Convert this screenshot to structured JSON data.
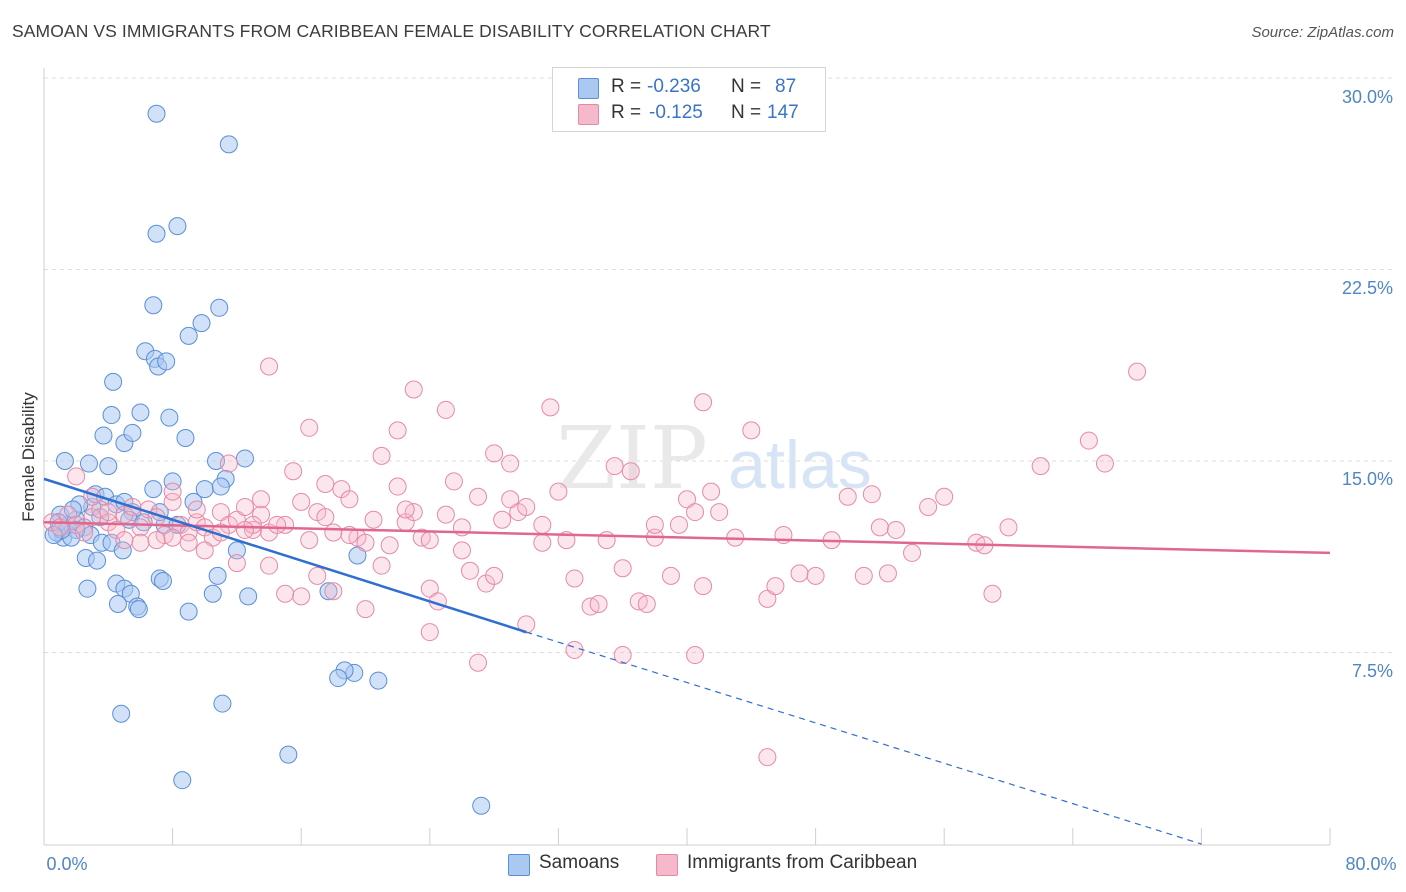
{
  "header": {
    "title": "SAMOAN VS IMMIGRANTS FROM CARIBBEAN FEMALE DISABILITY CORRELATION CHART",
    "source": "Source: ZipAtlas.com"
  },
  "legend_top": [
    {
      "r_label": "R =",
      "r_value": "-0.236",
      "n_label": "N =",
      "n_value": "87"
    },
    {
      "r_label": "R =",
      "r_value": "-0.125",
      "n_label": "N =",
      "n_value": "147"
    }
  ],
  "legend_bottom": [
    {
      "label": "Samoans"
    },
    {
      "label": "Immigrants from Caribbean"
    }
  ],
  "watermark": {
    "zip": "ZIP",
    "atlas": "atlas"
  },
  "colors": {
    "samoans_fill": "#a9c9f2",
    "samoans_stroke": "#5b8fd4",
    "samoans_line": "#2f6fd0",
    "caribbean_fill": "#f6b8cb",
    "caribbean_stroke": "#e58aa6",
    "caribbean_line": "#e0678f",
    "tick_text": "#4f86c6"
  },
  "chart_data": {
    "type": "scatter",
    "title": "SAMOAN VS IMMIGRANTS FROM CARIBBEAN FEMALE DISABILITY CORRELATION CHART",
    "xlabel": "",
    "ylabel": "Female Disability",
    "xlim": [
      0,
      80
    ],
    "ylim": [
      0,
      30
    ],
    "x_tick_labels": [
      "0.0%",
      "80.0%"
    ],
    "y_ticks": [
      7.5,
      15.0,
      22.5,
      30.0
    ],
    "y_tick_labels": [
      "7.5%",
      "15.0%",
      "22.5%",
      "30.0%"
    ],
    "grid": true,
    "legend_placement": "top-center",
    "series": [
      {
        "name": "Samoans",
        "R": -0.236,
        "N": 87,
        "trend": {
          "x0": 0.0,
          "y0": 14.3,
          "x1": 30.0,
          "y1": 8.3,
          "dashed_to_x": 72.0,
          "dashed_to_y": 0.0
        },
        "points": [
          [
            1.2,
            12.0
          ],
          [
            1.5,
            12.5
          ],
          [
            0.8,
            12.2
          ],
          [
            2.0,
            12.7
          ],
          [
            1.0,
            12.9
          ],
          [
            2.5,
            12.4
          ],
          [
            3.0,
            13.2
          ],
          [
            3.5,
            12.8
          ],
          [
            1.3,
            15.0
          ],
          [
            2.8,
            14.9
          ],
          [
            4.0,
            14.8
          ],
          [
            3.2,
            13.7
          ],
          [
            3.8,
            13.6
          ],
          [
            4.5,
            13.3
          ],
          [
            5.0,
            13.4
          ],
          [
            5.5,
            13.0
          ],
          [
            2.2,
            13.3
          ],
          [
            1.8,
            13.1
          ],
          [
            2.9,
            12.1
          ],
          [
            3.6,
            11.8
          ],
          [
            4.2,
            11.8
          ],
          [
            4.9,
            11.5
          ],
          [
            2.6,
            11.2
          ],
          [
            3.3,
            11.1
          ],
          [
            5.3,
            12.7
          ],
          [
            6.2,
            12.6
          ],
          [
            6.8,
            13.9
          ],
          [
            8.0,
            14.2
          ],
          [
            9.3,
            13.4
          ],
          [
            7.5,
            12.5
          ],
          [
            8.3,
            12.5
          ],
          [
            7.2,
            10.4
          ],
          [
            7.4,
            10.3
          ],
          [
            4.5,
            10.2
          ],
          [
            5.0,
            10.0
          ],
          [
            2.7,
            10.0
          ],
          [
            5.4,
            9.8
          ],
          [
            4.6,
            9.4
          ],
          [
            5.8,
            9.3
          ],
          [
            5.9,
            9.2
          ],
          [
            9.0,
            9.1
          ],
          [
            10.5,
            9.8
          ],
          [
            10.8,
            10.5
          ],
          [
            12.7,
            9.7
          ],
          [
            12.0,
            11.5
          ],
          [
            17.7,
            9.9
          ],
          [
            19.5,
            11.3
          ],
          [
            4.2,
            16.8
          ],
          [
            3.7,
            16.0
          ],
          [
            5.0,
            15.7
          ],
          [
            5.5,
            16.1
          ],
          [
            6.0,
            16.9
          ],
          [
            8.8,
            15.9
          ],
          [
            10.7,
            15.0
          ],
          [
            12.5,
            15.1
          ],
          [
            11.3,
            14.3
          ],
          [
            4.3,
            18.1
          ],
          [
            6.3,
            19.3
          ],
          [
            6.9,
            19.0
          ],
          [
            7.1,
            18.7
          ],
          [
            7.8,
            16.7
          ],
          [
            7.6,
            18.9
          ],
          [
            6.8,
            21.1
          ],
          [
            9.0,
            19.9
          ],
          [
            9.8,
            20.4
          ],
          [
            10.9,
            21.0
          ],
          [
            7.0,
            23.9
          ],
          [
            8.3,
            24.2
          ],
          [
            7.0,
            28.6
          ],
          [
            11.5,
            27.4
          ],
          [
            7.2,
            13.0
          ],
          [
            10.0,
            13.9
          ],
          [
            11.0,
            14.0
          ],
          [
            2.0,
            12.3
          ],
          [
            1.7,
            12.0
          ],
          [
            0.9,
            12.6
          ],
          [
            1.1,
            12.3
          ],
          [
            0.6,
            12.1
          ],
          [
            19.3,
            6.7
          ],
          [
            18.7,
            6.8
          ],
          [
            20.8,
            6.4
          ],
          [
            18.3,
            6.5
          ],
          [
            4.8,
            5.1
          ],
          [
            11.1,
            5.5
          ],
          [
            15.2,
            3.5
          ],
          [
            8.6,
            2.5
          ],
          [
            27.2,
            1.5
          ]
        ]
      },
      {
        "name": "Immigrants from Caribbean",
        "R": -0.125,
        "N": 147,
        "trend": {
          "x0": 0.0,
          "y0": 12.6,
          "x1": 80.0,
          "y1": 11.4
        },
        "points": [
          [
            0.5,
            12.6
          ],
          [
            1.0,
            12.4
          ],
          [
            1.5,
            12.9
          ],
          [
            2.0,
            12.5
          ],
          [
            2.5,
            12.2
          ],
          [
            3.0,
            12.8
          ],
          [
            3.5,
            13.1
          ],
          [
            4.0,
            12.6
          ],
          [
            4.5,
            12.3
          ],
          [
            5.0,
            12.9
          ],
          [
            5.5,
            13.2
          ],
          [
            6.0,
            12.4
          ],
          [
            6.5,
            13.1
          ],
          [
            7.0,
            12.8
          ],
          [
            7.5,
            12.1
          ],
          [
            8.0,
            13.4
          ],
          [
            8.5,
            12.5
          ],
          [
            9.0,
            12.2
          ],
          [
            9.5,
            12.6
          ],
          [
            10.0,
            12.4
          ],
          [
            10.5,
            12.0
          ],
          [
            11.0,
            13.0
          ],
          [
            11.5,
            12.5
          ],
          [
            12.0,
            12.7
          ],
          [
            12.5,
            13.2
          ],
          [
            13.0,
            12.3
          ],
          [
            13.5,
            12.9
          ],
          [
            14.0,
            12.2
          ],
          [
            15.0,
            12.5
          ],
          [
            15.5,
            14.6
          ],
          [
            16.0,
            13.4
          ],
          [
            16.5,
            11.9
          ],
          [
            17.0,
            13.0
          ],
          [
            17.5,
            12.8
          ],
          [
            18.0,
            12.2
          ],
          [
            18.5,
            13.9
          ],
          [
            19.0,
            13.5
          ],
          [
            19.5,
            12.0
          ],
          [
            20.0,
            11.8
          ],
          [
            20.5,
            12.7
          ],
          [
            21.0,
            10.9
          ],
          [
            21.5,
            11.7
          ],
          [
            22.0,
            14.0
          ],
          [
            22.5,
            12.6
          ],
          [
            23.0,
            13.0
          ],
          [
            23.5,
            12.0
          ],
          [
            24.0,
            10.0
          ],
          [
            24.5,
            9.5
          ],
          [
            25.0,
            12.9
          ],
          [
            25.5,
            14.2
          ],
          [
            26.0,
            12.4
          ],
          [
            26.5,
            10.7
          ],
          [
            27.0,
            13.6
          ],
          [
            27.5,
            10.2
          ],
          [
            28.0,
            15.3
          ],
          [
            28.5,
            12.7
          ],
          [
            29.0,
            14.9
          ],
          [
            29.5,
            13.0
          ],
          [
            30.0,
            13.2
          ],
          [
            31.0,
            11.8
          ],
          [
            31.5,
            17.1
          ],
          [
            32.0,
            13.8
          ],
          [
            32.5,
            11.9
          ],
          [
            33.0,
            10.4
          ],
          [
            34.0,
            9.3
          ],
          [
            35.0,
            11.9
          ],
          [
            35.5,
            14.8
          ],
          [
            36.0,
            10.8
          ],
          [
            37.0,
            9.5
          ],
          [
            37.5,
            9.4
          ],
          [
            38.0,
            12.0
          ],
          [
            39.0,
            10.5
          ],
          [
            39.5,
            12.5
          ],
          [
            40.0,
            13.5
          ],
          [
            40.5,
            13.0
          ],
          [
            41.0,
            10.1
          ],
          [
            41.5,
            13.8
          ],
          [
            42.0,
            13.0
          ],
          [
            43.0,
            12.0
          ],
          [
            44.0,
            16.2
          ],
          [
            45.0,
            9.6
          ],
          [
            45.5,
            10.1
          ],
          [
            46.0,
            12.1
          ],
          [
            47.0,
            10.6
          ],
          [
            48.0,
            10.5
          ],
          [
            49.0,
            11.9
          ],
          [
            50.0,
            13.6
          ],
          [
            51.0,
            10.5
          ],
          [
            51.5,
            13.7
          ],
          [
            52.0,
            12.4
          ],
          [
            52.5,
            10.6
          ],
          [
            53.0,
            12.3
          ],
          [
            54.0,
            11.4
          ],
          [
            55.0,
            13.2
          ],
          [
            56.0,
            13.6
          ],
          [
            58.0,
            11.8
          ],
          [
            59.0,
            9.8
          ],
          [
            60.0,
            12.4
          ],
          [
            62.0,
            14.8
          ],
          [
            65.0,
            15.8
          ],
          [
            66.0,
            14.9
          ],
          [
            68.0,
            18.5
          ],
          [
            58.5,
            11.7
          ],
          [
            6.0,
            11.8
          ],
          [
            7.0,
            11.9
          ],
          [
            8.0,
            12.0
          ],
          [
            9.0,
            11.8
          ],
          [
            10.0,
            11.5
          ],
          [
            11.0,
            12.2
          ],
          [
            12.0,
            11.0
          ],
          [
            13.0,
            12.5
          ],
          [
            14.0,
            10.9
          ],
          [
            15.0,
            9.8
          ],
          [
            16.0,
            9.7
          ],
          [
            17.0,
            10.5
          ],
          [
            18.0,
            9.9
          ],
          [
            19.0,
            12.1
          ],
          [
            20.0,
            9.2
          ],
          [
            21.0,
            15.2
          ],
          [
            22.0,
            16.2
          ],
          [
            23.0,
            17.8
          ],
          [
            24.0,
            11.9
          ],
          [
            25.0,
            17.0
          ],
          [
            26.0,
            11.5
          ],
          [
            27.0,
            7.1
          ],
          [
            28.0,
            10.5
          ],
          [
            29.0,
            13.5
          ],
          [
            30.0,
            8.6
          ],
          [
            31.0,
            12.5
          ],
          [
            33.0,
            7.6
          ],
          [
            34.5,
            9.4
          ],
          [
            36.0,
            7.4
          ],
          [
            38.0,
            12.5
          ],
          [
            40.5,
            7.4
          ],
          [
            41.0,
            17.3
          ],
          [
            45.0,
            3.4
          ],
          [
            2.0,
            14.4
          ],
          [
            3.0,
            13.6
          ],
          [
            4.0,
            13.0
          ],
          [
            5.0,
            11.9
          ],
          [
            8.0,
            13.8
          ],
          [
            9.5,
            13.1
          ],
          [
            11.5,
            14.9
          ],
          [
            12.5,
            12.3
          ],
          [
            13.5,
            13.5
          ],
          [
            14.5,
            12.5
          ],
          [
            16.5,
            16.3
          ],
          [
            17.5,
            14.1
          ],
          [
            22.5,
            13.1
          ],
          [
            14.0,
            18.7
          ],
          [
            24.0,
            8.3
          ],
          [
            36.5,
            14.6
          ]
        ]
      }
    ]
  }
}
